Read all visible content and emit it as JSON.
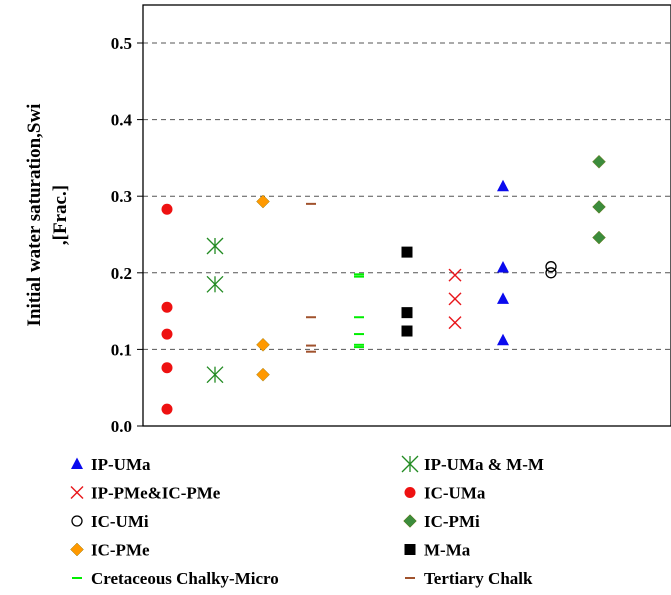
{
  "chart_data": {
    "type": "scatter",
    "ylabel_line1": "Initial water saturation,Swi",
    "ylabel_line2": ",[Frac.]",
    "xlabel": "",
    "ylim": [
      0.0,
      0.55
    ],
    "yticks": [
      "0.0",
      "0.1",
      "0.2",
      "0.3",
      "0.4",
      "0.5"
    ],
    "ytick_values": [
      0.0,
      0.1,
      0.2,
      0.3,
      0.4,
      0.5
    ],
    "grid": "horizontal dashed",
    "legend_position": "bottom",
    "series": [
      {
        "name": "IC-UMa",
        "marker": "circle-filled",
        "color": "#ee1111",
        "x": 1,
        "values": [
          0.283,
          0.155,
          0.12,
          0.076,
          0.022
        ]
      },
      {
        "name": "IP-UMa & M-M",
        "marker": "asterisk",
        "color": "#228b22",
        "x": 2,
        "values": [
          0.235,
          0.185,
          0.067
        ]
      },
      {
        "name": "IC-PMe",
        "marker": "diamond",
        "color": "#ff9900",
        "x": 3,
        "values": [
          0.293,
          0.106,
          0.067
        ]
      },
      {
        "name": "Tertiary Chalk",
        "marker": "dash",
        "color": "#a0522d",
        "x": 4,
        "values": [
          0.29,
          0.142,
          0.105,
          0.097
        ]
      },
      {
        "name": "Cretaceous Chalky-Micro",
        "marker": "dash",
        "color": "#00ee00",
        "x": 5,
        "values": [
          0.198,
          0.195,
          0.142,
          0.12,
          0.106,
          0.103
        ]
      },
      {
        "name": "M-Ma",
        "marker": "square",
        "color": "#000000",
        "x": 6,
        "values": [
          0.227,
          0.148,
          0.124
        ]
      },
      {
        "name": "IP-PMe&IC-PMe",
        "marker": "cross",
        "color": "#e8161b",
        "x": 7,
        "values": [
          0.197,
          0.166,
          0.135
        ]
      },
      {
        "name": "IP-UMa",
        "marker": "triangle",
        "color": "#0a0aee",
        "x": 8,
        "values": [
          0.313,
          0.207,
          0.166,
          0.112
        ]
      },
      {
        "name": "IC-UMi",
        "marker": "circle-open",
        "color": "#000000",
        "x": 9,
        "values": [
          0.208,
          0.2
        ]
      },
      {
        "name": "IC-PMi",
        "marker": "diamond",
        "color": "#3c8c3c",
        "x": 10,
        "values": [
          0.345,
          0.286,
          0.246
        ]
      }
    ],
    "legend": [
      {
        "label": "IP-UMa",
        "marker": "triangle",
        "color": "#0a0aee"
      },
      {
        "label": "IP-UMa & M-M",
        "marker": "asterisk",
        "color": "#228b22"
      },
      {
        "label": "IP-PMe&IC-PMe",
        "marker": "cross",
        "color": "#e8161b"
      },
      {
        "label": "IC-UMa",
        "marker": "circle-filled",
        "color": "#ee1111"
      },
      {
        "label": "IC-UMi",
        "marker": "circle-open",
        "color": "#000000"
      },
      {
        "label": "IC-PMi",
        "marker": "diamond",
        "color": "#3c8c3c"
      },
      {
        "label": "IC-PMe",
        "marker": "diamond",
        "color": "#ff9900"
      },
      {
        "label": "M-Ma",
        "marker": "square",
        "color": "#000000"
      },
      {
        "label": "Cretaceous Chalky-Micro",
        "marker": "dash",
        "color": "#00ee00"
      },
      {
        "label": "Tertiary Chalk",
        "marker": "dash",
        "color": "#a0522d"
      }
    ]
  }
}
